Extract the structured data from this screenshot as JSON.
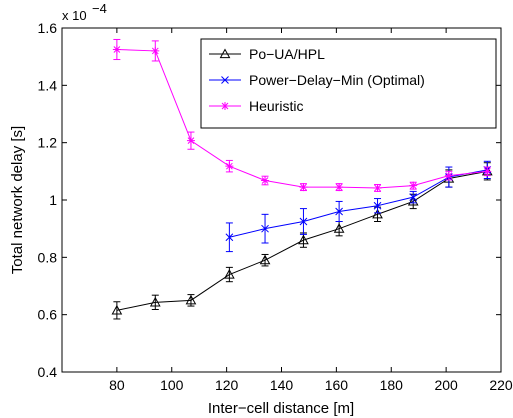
{
  "chart_data": {
    "type": "line",
    "xlabel": "Inter−cell distance [m]",
    "ylabel": "Total network delay [s]",
    "y_multiplier_label": "x 10",
    "y_multiplier_exponent": "−4",
    "xlim": [
      60,
      220
    ],
    "ylim": [
      0.4,
      1.6
    ],
    "x_ticks": [
      80,
      100,
      120,
      140,
      160,
      180,
      200,
      220
    ],
    "y_ticks": [
      0.4,
      0.6,
      0.8,
      1.0,
      1.2,
      1.4,
      1.6
    ],
    "y_tick_labels": [
      "0.4",
      "0.6",
      "0.8",
      "1",
      "1.2",
      "1.4",
      "1.6"
    ],
    "grid": false,
    "legend_position": "top-right",
    "series": [
      {
        "name": "Po−UA/HPL",
        "color": "#000000",
        "marker": "triangle",
        "x": [
          80,
          94,
          107,
          121,
          134,
          148,
          161,
          175,
          188,
          201,
          215
        ],
        "y": [
          0.615,
          0.643,
          0.65,
          0.74,
          0.79,
          0.86,
          0.9,
          0.95,
          0.995,
          1.075,
          1.1
        ],
        "err": [
          0.03,
          0.025,
          0.02,
          0.025,
          0.02,
          0.025,
          0.025,
          0.025,
          0.025,
          0.03,
          0.03
        ]
      },
      {
        "name": "Power−Delay−Min (Optimal)",
        "color": "#0000ff",
        "marker": "x",
        "x": [
          121,
          134,
          148,
          161,
          175,
          188,
          201,
          215
        ],
        "y": [
          0.87,
          0.9,
          0.925,
          0.96,
          0.98,
          1.01,
          1.08,
          1.105
        ],
        "err": [
          0.05,
          0.05,
          0.045,
          0.035,
          0.025,
          0.02,
          0.035,
          0.03
        ]
      },
      {
        "name": "Heuristic",
        "color": "#ff00ff",
        "marker": "star",
        "x": [
          80,
          94,
          107,
          121,
          134,
          148,
          161,
          175,
          188,
          201,
          215
        ],
        "y": [
          1.525,
          1.52,
          1.207,
          1.118,
          1.068,
          1.045,
          1.045,
          1.042,
          1.05,
          1.085,
          1.1
        ],
        "err": [
          0.035,
          0.035,
          0.03,
          0.02,
          0.015,
          0.012,
          0.012,
          0.012,
          0.012,
          0.015,
          0.015
        ]
      }
    ]
  }
}
